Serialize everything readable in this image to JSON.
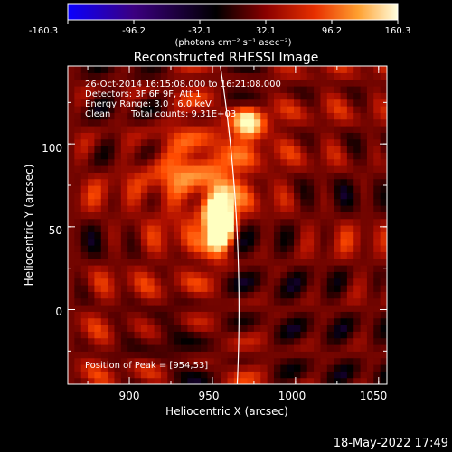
{
  "colorbar": {
    "tick_labels": [
      "-160.3",
      "-96.2",
      "-32.1",
      "32.1",
      "96.2",
      "160.3"
    ],
    "min": -160.3,
    "max": 160.3,
    "units": "(photons cm⁻² s⁻¹ asec⁻²)"
  },
  "chart_data": {
    "type": "heatmap",
    "title": "Reconstructed RHESSI Image",
    "xlabel": "Heliocentric X (arcsec)",
    "ylabel": "Heliocentric Y (arcsec)",
    "xlim": [
      863,
      1055
    ],
    "ylim": [
      -45,
      147
    ],
    "x_ticks": [
      "900",
      "950",
      "1000",
      "1050"
    ],
    "x_tick_values": [
      900,
      950,
      1000,
      1050
    ],
    "y_ticks": [
      "0",
      "50",
      "100"
    ],
    "y_tick_values": [
      0,
      50,
      100
    ],
    "peak": {
      "x": 954,
      "y": 53
    },
    "limb": {
      "center_x": 0,
      "center_y": 0,
      "radius": 966
    },
    "annotations": {
      "time": "26-Oct-2014 16:15:08.000 to 16:21:08.000",
      "detectors": "Detectors: 3F 6F 9F, Att 1",
      "energy": "Energy Range: 3.0 - 6.0 keV",
      "method": "Clean",
      "counts": "Total counts: 9.31E+03",
      "peak_text": "Position of Peak = [954,53]"
    },
    "colormap": [
      "#0a00ff",
      "#3b0080",
      "#000000",
      "#5a0000",
      "#b01000",
      "#ff4a00",
      "#ffa040",
      "#ffffc0"
    ]
  },
  "footer": {
    "timestamp": "18-May-2022 17:49"
  }
}
